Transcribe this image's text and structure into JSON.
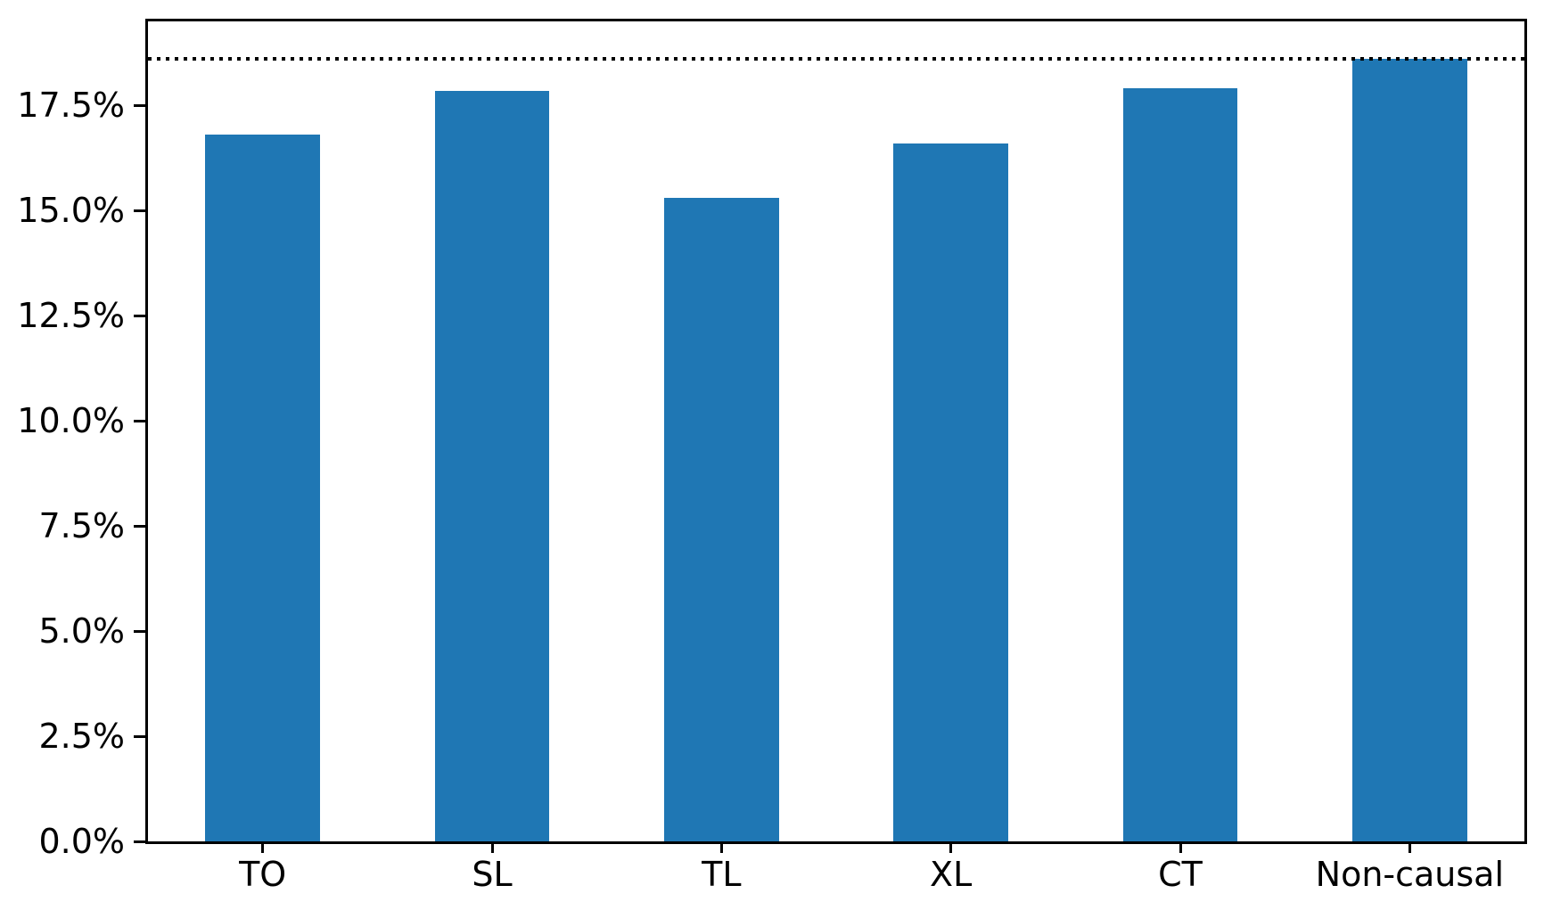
{
  "figure": {
    "background": "#ffffff"
  },
  "chart_data": {
    "type": "bar",
    "title": "",
    "xlabel": "",
    "ylabel": "",
    "categories": [
      "TO",
      "SL",
      "TL",
      "XL",
      "CT",
      "Non-causal"
    ],
    "values": [
      16.8,
      17.85,
      15.3,
      16.6,
      17.9,
      18.6
    ],
    "unit": "%",
    "ylim": [
      0,
      19.5
    ],
    "y_ticks": [
      0,
      2.5,
      5,
      7.5,
      10,
      12.5,
      15,
      17.5
    ],
    "y_tick_labels": [
      "0.0%",
      "2.5%",
      "5.0%",
      "7.5%",
      "10.0%",
      "12.5%",
      "15.0%",
      "17.5%"
    ],
    "bar_color": "#1f77b4",
    "bar_width_fraction": 0.5,
    "reference_line": {
      "value": 18.6,
      "style": "dotted",
      "color": "#000000"
    },
    "grid": false,
    "legend_position": "none"
  }
}
